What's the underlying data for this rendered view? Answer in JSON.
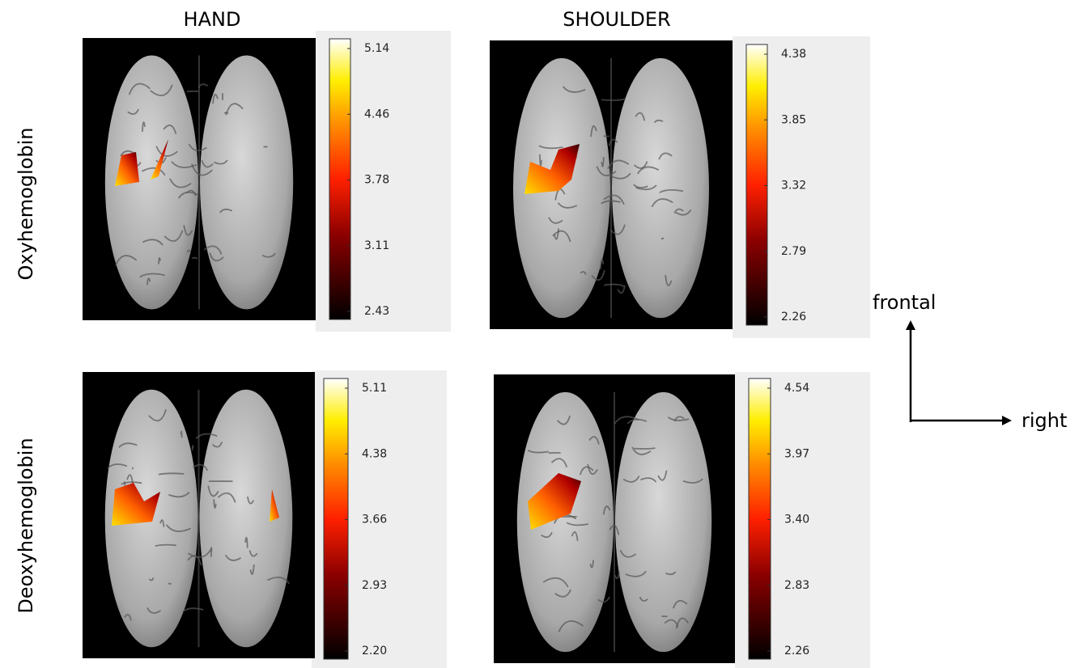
{
  "columns": [
    "HAND",
    "SHOULDER"
  ],
  "rows": [
    "Oxyhemoglobin",
    "Deoxyhemoglobin"
  ],
  "panels": [
    {
      "colorbar_ticks": [
        "5.14",
        "4.46",
        "3.78",
        "3.11",
        "2.43"
      ]
    },
    {
      "colorbar_ticks": [
        "4.38",
        "3.85",
        "3.32",
        "2.79",
        "2.26"
      ]
    },
    {
      "colorbar_ticks": [
        "5.11",
        "4.38",
        "3.66",
        "2.93",
        "2.20"
      ]
    },
    {
      "colorbar_ticks": [
        "4.54",
        "3.97",
        "3.40",
        "2.83",
        "2.26"
      ]
    }
  ],
  "axes": {
    "up": "frontal",
    "right": "right"
  }
}
